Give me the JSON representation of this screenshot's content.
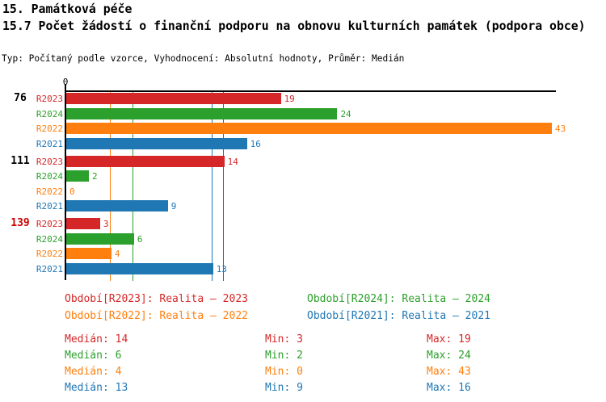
{
  "header": {
    "title1": "15. Památková péče",
    "title2": "15.7 Počet žádostí o finanční podporu na obnovu kulturních památek (podpora obce)",
    "meta": "Typ: Počítaný podle vzorce, Vyhodnocení: Absolutní hodnoty, Průměr: Medián"
  },
  "chart_data": {
    "type": "bar",
    "orientation": "horizontal",
    "axis": {
      "zero_label": "0",
      "x_min": 0,
      "x_max": 43.4,
      "grid": false
    },
    "series_colors": {
      "R2023": "#d62728",
      "R2024": "#2ca02c",
      "R2022": "#ff7f0e",
      "R2021": "#1f77b4"
    },
    "median_lines": [
      {
        "series": "R2023",
        "value": 14,
        "color": "#d62728"
      },
      {
        "series": "R2024",
        "value": 6,
        "color": "#2ca02c"
      },
      {
        "series": "R2022",
        "value": 4,
        "color": "#ff7f0e"
      },
      {
        "series": "R2021",
        "value": 13,
        "color": "#1f77b4"
      }
    ],
    "groups": [
      {
        "label": "76",
        "label_color": "#000000",
        "bars": [
          {
            "series": "R2023",
            "value": 19,
            "color": "#d62728"
          },
          {
            "series": "R2024",
            "value": 24,
            "color": "#2ca02c"
          },
          {
            "series": "R2022",
            "value": 43,
            "color": "#ff7f0e"
          },
          {
            "series": "R2021",
            "value": 16,
            "color": "#1f77b4"
          }
        ]
      },
      {
        "label": "111",
        "label_color": "#000000",
        "bars": [
          {
            "series": "R2023",
            "value": 14,
            "color": "#d62728"
          },
          {
            "series": "R2024",
            "value": 2,
            "color": "#2ca02c"
          },
          {
            "series": "R2022",
            "value": 0,
            "color": "#ff7f0e"
          },
          {
            "series": "R2021",
            "value": 9,
            "color": "#1f77b4"
          }
        ]
      },
      {
        "label": "139",
        "label_color": "#cc0000",
        "bars": [
          {
            "series": "R2023",
            "value": 3,
            "color": "#d62728"
          },
          {
            "series": "R2024",
            "value": 6,
            "color": "#2ca02c"
          },
          {
            "series": "R2022",
            "value": 4,
            "color": "#ff7f0e"
          },
          {
            "series": "R2021",
            "value": 13,
            "color": "#1f77b4"
          }
        ]
      }
    ]
  },
  "legend": {
    "items": [
      {
        "text": "Období[R2023]: Realita – 2023",
        "color": "#d62728"
      },
      {
        "text": "Období[R2024]: Realita – 2024",
        "color": "#2ca02c"
      },
      {
        "text": "Období[R2022]: Realita – 2022",
        "color": "#ff7f0e"
      },
      {
        "text": "Období[R2021]: Realita – 2021",
        "color": "#1f77b4"
      }
    ]
  },
  "stats": {
    "rows": [
      {
        "color": "#d62728",
        "median": "Medián: 14",
        "min": "Min: 3",
        "max": "Max: 19"
      },
      {
        "color": "#2ca02c",
        "median": "Medián: 6",
        "min": "Min: 2",
        "max": "Max: 24"
      },
      {
        "color": "#ff7f0e",
        "median": "Medián: 4",
        "min": "Min: 0",
        "max": "Max: 43"
      },
      {
        "color": "#1f77b4",
        "median": "Medián: 13",
        "min": "Min: 9",
        "max": "Max: 16"
      }
    ]
  }
}
